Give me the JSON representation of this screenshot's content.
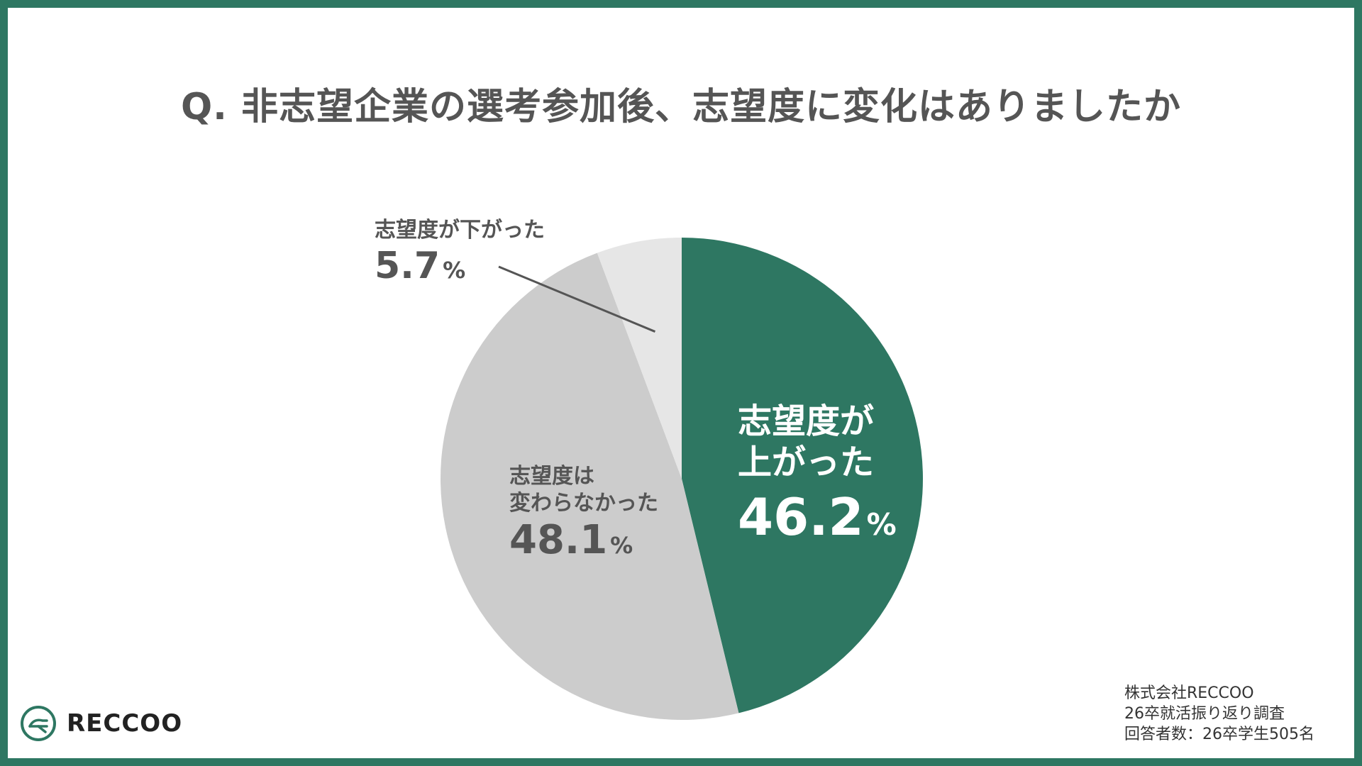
{
  "title": "Q. 非志望企業の選考参加後、志望度に変化はありましたか",
  "chart_data": {
    "type": "pie",
    "title": "Q. 非志望企業の選考参加後、志望度に変化はありましたか",
    "slices": [
      {
        "label_lines": [
          "志望度が",
          "上がった"
        ],
        "value": 46.2,
        "color": "#2e7762"
      },
      {
        "label_lines": [
          "志望度は",
          "変わらなかった"
        ],
        "value": 48.1,
        "color": "#cccccc"
      },
      {
        "label_lines": [
          "志望度が下がった"
        ],
        "value": 5.7,
        "color": "#e6e6e6"
      }
    ],
    "unit": "%",
    "start_angle": "12 o'clock",
    "direction": "clockwise"
  },
  "labels": {
    "up": {
      "line1": "志望度が",
      "line2": "上がった",
      "pct": "46.2",
      "sym": "%"
    },
    "same": {
      "line1": "志望度は",
      "line2": "変わらなかった",
      "pct": "48.1",
      "sym": "%"
    },
    "down": {
      "line1": "志望度が下がった",
      "pct": "5.7",
      "sym": "%"
    }
  },
  "logo": {
    "text": "RECCOO",
    "icon": "reccoo-logo-icon"
  },
  "source": {
    "line1": "株式会社RECCOO",
    "line2": "26卒就活振り返り調査",
    "line3": "回答者数：26卒学生505名"
  },
  "colors": {
    "accent": "#2e7762",
    "text": "#555555"
  }
}
